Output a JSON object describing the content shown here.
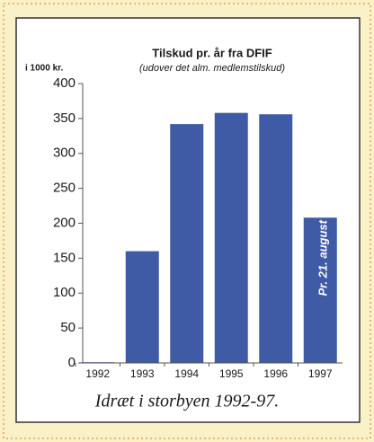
{
  "chart_data": {
    "type": "bar",
    "title": "Tilskud pr. år fra DFIF",
    "subtitle": "(udover det alm. medlemstilskud)",
    "y_label": "i 1000 kr.",
    "categories": [
      "1992",
      "1993",
      "1994",
      "1995",
      "1996",
      "1997"
    ],
    "values": [
      1,
      160,
      342,
      358,
      356,
      208
    ],
    "color": "#3f5ba6",
    "ylim": [
      0,
      400
    ],
    "yticks": [
      0,
      50,
      100,
      150,
      200,
      250,
      300,
      350,
      400
    ],
    "grid": false,
    "annotation": "Pr. 21. august"
  },
  "caption": "Idræt i storbyen 1992-97."
}
